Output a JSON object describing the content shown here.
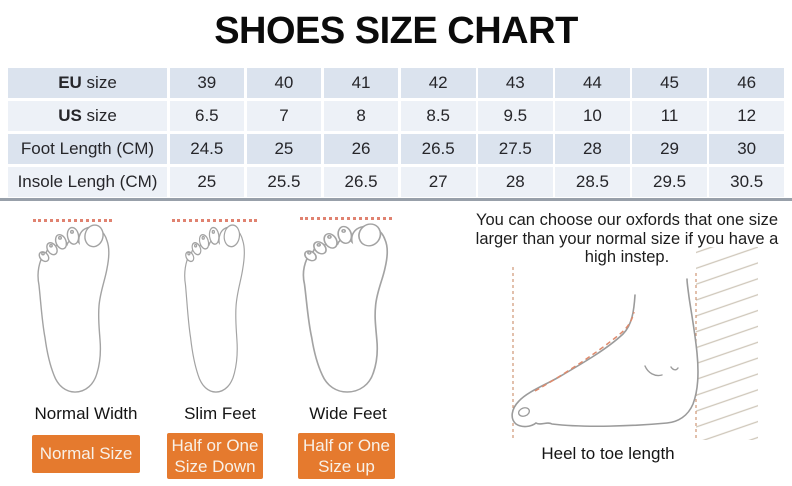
{
  "title": "SHOES SIZE CHART",
  "table": {
    "rows": [
      {
        "label_bold": "EU",
        "label_rest": " size",
        "values": [
          "39",
          "40",
          "41",
          "42",
          "43",
          "44",
          "45",
          "46"
        ]
      },
      {
        "label_bold": "US",
        "label_rest": " size",
        "values": [
          "6.5",
          "7",
          "8",
          "8.5",
          "9.5",
          "10",
          "11",
          "12"
        ]
      },
      {
        "label_bold": "",
        "label_rest": "Foot Length (CM)",
        "values": [
          "24.5",
          "25",
          "26",
          "26.5",
          "27.5",
          "28",
          "29",
          "30"
        ]
      },
      {
        "label_bold": "",
        "label_rest": "Insole Lengh (CM)",
        "values": [
          "25",
          "25.5",
          "26.5",
          "27",
          "28",
          "28.5",
          "29.5",
          "30.5"
        ]
      }
    ]
  },
  "feet": [
    {
      "label": "Normal Width",
      "button": "Normal Size"
    },
    {
      "label": "Slim Feet",
      "button": "Half or One Size Down"
    },
    {
      "label": "Wide Feet",
      "button": "Half or One Size up"
    }
  ],
  "note_lines": [
    "You can choose our oxfords that one size",
    "larger than your normal size if you have a",
    "high instep."
  ],
  "side_caption": "Heel to toe length",
  "colors": {
    "row_shaded": "#dbe3ee",
    "row_plain": "#edf1f7",
    "button_orange": "#e57a2e",
    "dotted_salmon": "#e08270",
    "divider_gray": "#98a0aa",
    "hatch_tan": "#cfc7ba",
    "outline_gray": "#a3a3a3"
  },
  "chart_data": {
    "type": "table",
    "title": "SHOES SIZE CHART",
    "rows": [
      {
        "label": "EU size",
        "values": [
          39,
          40,
          41,
          42,
          43,
          44,
          45,
          46
        ]
      },
      {
        "label": "US size",
        "values": [
          6.5,
          7,
          8,
          8.5,
          9.5,
          10,
          11,
          12
        ]
      },
      {
        "label": "Foot Length (CM)",
        "values": [
          24.5,
          25,
          26,
          26.5,
          27.5,
          28,
          29,
          30
        ]
      },
      {
        "label": "Insole Lengh (CM)",
        "values": [
          25,
          25.5,
          26.5,
          27,
          28,
          28.5,
          29.5,
          30.5
        ]
      }
    ]
  }
}
